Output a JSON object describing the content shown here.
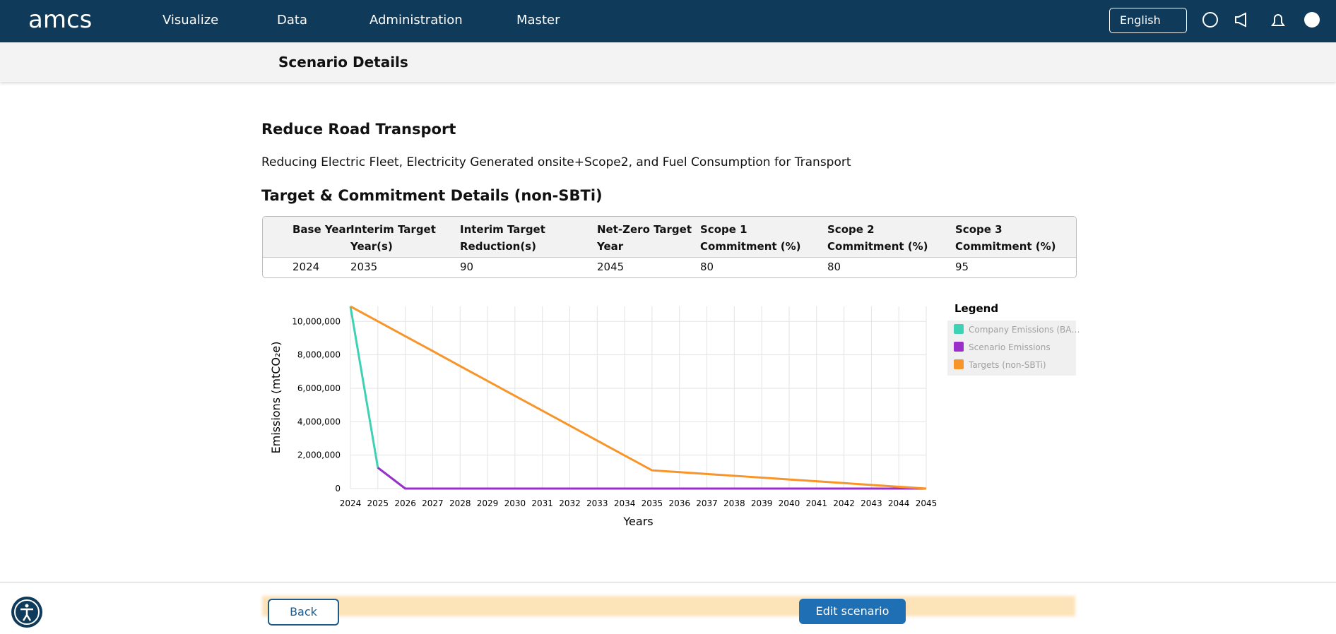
{
  "nav": {
    "logo": "amcs",
    "items": [
      "Visualize",
      "Data",
      "Administration",
      "Master"
    ],
    "language": "English"
  },
  "header": {
    "title": "Scenario Details"
  },
  "scenario": {
    "title": "Reduce Road Transport",
    "description": "Reducing Electric Fleet, Electricity Generated onsite+Scope2, and Fuel Consumption for Transport"
  },
  "section": {
    "title": "Target & Commitment Details (non-SBTi)"
  },
  "table": {
    "headers": [
      "Base Year",
      "Interim Target Year(s)",
      "Interim Target Reduction(s)",
      "Net-Zero Target Year",
      "Scope 1 Commitment (%)",
      "Scope 2 Commitment (%)",
      "Scope 3 Commitment (%)"
    ],
    "rows": [
      [
        "2024",
        "2035",
        "90",
        "2045",
        "80",
        "80",
        "95"
      ]
    ]
  },
  "chart_data": {
    "type": "line",
    "x_label": "Years",
    "y_label": "Emissions (mtCO₂e)",
    "legend_title": "Legend",
    "legend": "right",
    "grid": true,
    "x": [
      2024,
      2025,
      2026,
      2027,
      2028,
      2029,
      2030,
      2031,
      2032,
      2033,
      2034,
      2035,
      2036,
      2037,
      2038,
      2039,
      2040,
      2041,
      2042,
      2043,
      2044,
      2045
    ],
    "xlim": [
      2024,
      2045
    ],
    "ylim": [
      0,
      10900000
    ],
    "yticks": [
      0,
      {
        "value": 2000000,
        "label": "2,000,000"
      },
      {
        "value": 4000000,
        "label": "4,000,000"
      },
      {
        "value": 6000000,
        "label": "6,000,000"
      },
      {
        "value": 8000000,
        "label": "8,000,000"
      },
      {
        "value": 10000000,
        "label": "10,000,000"
      }
    ],
    "series": [
      {
        "name": "Company Emissions (BA…",
        "color": "#3fd1b4",
        "values": [
          10900000,
          1250000,
          0,
          0,
          0,
          0,
          0,
          0,
          0,
          0,
          0,
          0,
          0,
          0,
          0,
          0,
          0,
          0,
          0,
          0,
          0,
          0
        ]
      },
      {
        "name": "Scenario Emissions",
        "color": "#9b2fc9",
        "values": [
          null,
          1250000,
          0,
          0,
          0,
          0,
          0,
          0,
          0,
          0,
          0,
          0,
          0,
          0,
          0,
          0,
          0,
          0,
          0,
          0,
          0,
          0
        ]
      },
      {
        "name": "Targets (non-SBTi)",
        "color": "#f7952a",
        "values": [
          10900000,
          10010000,
          9120000,
          8230000,
          7330000,
          6440000,
          5550000,
          4660000,
          3770000,
          2870000,
          1980000,
          1090000,
          981000,
          872000,
          763000,
          654000,
          545000,
          436000,
          327000,
          218000,
          109000,
          0
        ]
      }
    ]
  },
  "buttons": {
    "back": "Back",
    "edit": "Edit scenario"
  }
}
